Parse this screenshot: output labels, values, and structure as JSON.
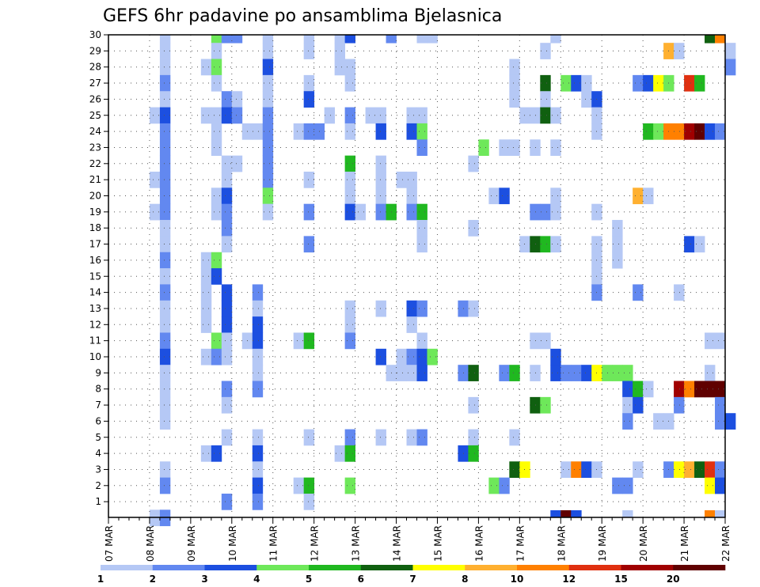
{
  "chart_data": {
    "type": "heatmap",
    "title": "GEFS 6hr padavine po ansamblima Bjelasnica",
    "xlabel": "",
    "ylabel": "",
    "x_tick_labels": [
      "07 MAR",
      "08 MAR",
      "09 MAR",
      "10 MAR",
      "11 MAR",
      "12 MAR",
      "13 MAR",
      "14 MAR",
      "15 MAR",
      "16 MAR",
      "17 MAR",
      "18 MAR",
      "19 MAR",
      "20 MAR",
      "21 MAR",
      "22 MAR"
    ],
    "x_range_steps": [
      0,
      60
    ],
    "members": [
      1,
      2,
      3,
      4,
      5,
      6,
      7,
      8,
      9,
      10,
      11,
      12,
      13,
      14,
      15,
      16,
      17,
      18,
      19,
      20,
      21,
      22,
      23,
      24,
      25,
      26,
      27,
      28,
      29,
      30
    ],
    "y_range": [
      0,
      30
    ],
    "grid": true,
    "legend_position": "bottom",
    "colorbar": {
      "levels": [
        "1",
        "2",
        "3",
        "4",
        "5",
        "6",
        "7",
        "8",
        "10",
        "12",
        "15",
        "20"
      ],
      "colors": [
        "#b5c8f5",
        "#6288f0",
        "#1c4fe0",
        "#6ee85a",
        "#20b820",
        "#106010",
        "#ffff00",
        "#ffb030",
        "#ff8000",
        "#e03010",
        "#a00000",
        "#600000"
      ]
    },
    "cells": [
      [
        30,
        5,
        0
      ],
      [
        30,
        10,
        3
      ],
      [
        30,
        11,
        1
      ],
      [
        30,
        12,
        1
      ],
      [
        30,
        15,
        0
      ],
      [
        30,
        19,
        0
      ],
      [
        30,
        22,
        0
      ],
      [
        30,
        23,
        2
      ],
      [
        30,
        27,
        1
      ],
      [
        30,
        30,
        0
      ],
      [
        30,
        31,
        0
      ],
      [
        30,
        43,
        0
      ],
      [
        30,
        58,
        5
      ],
      [
        30,
        59,
        8
      ],
      [
        29,
        5,
        0
      ],
      [
        29,
        10,
        0
      ],
      [
        29,
        15,
        0
      ],
      [
        29,
        19,
        0
      ],
      [
        29,
        22,
        0
      ],
      [
        29,
        42,
        0
      ],
      [
        29,
        54,
        7
      ],
      [
        29,
        55,
        0
      ],
      [
        29,
        60,
        0
      ],
      [
        28,
        5,
        0
      ],
      [
        28,
        9,
        0
      ],
      [
        28,
        10,
        3
      ],
      [
        28,
        15,
        2
      ],
      [
        28,
        22,
        0
      ],
      [
        28,
        23,
        0
      ],
      [
        28,
        39,
        0
      ],
      [
        28,
        60,
        1
      ],
      [
        27,
        5,
        1
      ],
      [
        27,
        10,
        0
      ],
      [
        27,
        15,
        0
      ],
      [
        27,
        19,
        0
      ],
      [
        27,
        23,
        0
      ],
      [
        27,
        39,
        0
      ],
      [
        27,
        42,
        5
      ],
      [
        27,
        44,
        3
      ],
      [
        27,
        45,
        2
      ],
      [
        27,
        46,
        0
      ],
      [
        27,
        51,
        1
      ],
      [
        27,
        52,
        2
      ],
      [
        27,
        53,
        6
      ],
      [
        27,
        54,
        3
      ],
      [
        27,
        56,
        9
      ],
      [
        27,
        57,
        4
      ],
      [
        26,
        5,
        0
      ],
      [
        26,
        11,
        1
      ],
      [
        26,
        12,
        0
      ],
      [
        26,
        15,
        0
      ],
      [
        26,
        19,
        2
      ],
      [
        26,
        39,
        0
      ],
      [
        26,
        42,
        0
      ],
      [
        26,
        46,
        0
      ],
      [
        26,
        47,
        2
      ],
      [
        25,
        4,
        0
      ],
      [
        25,
        5,
        2
      ],
      [
        25,
        9,
        0
      ],
      [
        25,
        10,
        0
      ],
      [
        25,
        11,
        2
      ],
      [
        25,
        12,
        1
      ],
      [
        25,
        15,
        1
      ],
      [
        25,
        21,
        0
      ],
      [
        25,
        23,
        1
      ],
      [
        25,
        25,
        0
      ],
      [
        25,
        26,
        0
      ],
      [
        25,
        29,
        0
      ],
      [
        25,
        30,
        0
      ],
      [
        25,
        40,
        0
      ],
      [
        25,
        41,
        0
      ],
      [
        25,
        42,
        5
      ],
      [
        25,
        43,
        0
      ],
      [
        25,
        47,
        0
      ],
      [
        24,
        5,
        1
      ],
      [
        24,
        10,
        0
      ],
      [
        24,
        13,
        0
      ],
      [
        24,
        14,
        0
      ],
      [
        24,
        15,
        1
      ],
      [
        24,
        18,
        0
      ],
      [
        24,
        19,
        1
      ],
      [
        24,
        20,
        1
      ],
      [
        24,
        23,
        0
      ],
      [
        24,
        26,
        2
      ],
      [
        24,
        29,
        2
      ],
      [
        24,
        30,
        3
      ],
      [
        24,
        47,
        0
      ],
      [
        24,
        52,
        4
      ],
      [
        24,
        53,
        3
      ],
      [
        24,
        54,
        8
      ],
      [
        24,
        55,
        8
      ],
      [
        24,
        56,
        10
      ],
      [
        24,
        57,
        11
      ],
      [
        24,
        58,
        2
      ],
      [
        24,
        59,
        1
      ],
      [
        23,
        5,
        1
      ],
      [
        23,
        10,
        0
      ],
      [
        23,
        15,
        1
      ],
      [
        23,
        30,
        1
      ],
      [
        23,
        36,
        3
      ],
      [
        23,
        38,
        0
      ],
      [
        23,
        39,
        0
      ],
      [
        23,
        41,
        0
      ],
      [
        23,
        43,
        0
      ],
      [
        22,
        5,
        1
      ],
      [
        22,
        11,
        0
      ],
      [
        22,
        12,
        0
      ],
      [
        22,
        15,
        1
      ],
      [
        22,
        23,
        4
      ],
      [
        22,
        26,
        0
      ],
      [
        22,
        35,
        0
      ],
      [
        21,
        4,
        0
      ],
      [
        21,
        5,
        1
      ],
      [
        21,
        11,
        0
      ],
      [
        21,
        15,
        1
      ],
      [
        21,
        19,
        0
      ],
      [
        21,
        23,
        0
      ],
      [
        21,
        26,
        0
      ],
      [
        21,
        28,
        0
      ],
      [
        21,
        29,
        0
      ],
      [
        20,
        5,
        1
      ],
      [
        20,
        10,
        0
      ],
      [
        20,
        11,
        2
      ],
      [
        20,
        15,
        3
      ],
      [
        20,
        23,
        0
      ],
      [
        20,
        26,
        0
      ],
      [
        20,
        29,
        0
      ],
      [
        20,
        37,
        0
      ],
      [
        20,
        38,
        2
      ],
      [
        20,
        43,
        0
      ],
      [
        20,
        51,
        7
      ],
      [
        20,
        52,
        0
      ],
      [
        19,
        4,
        0
      ],
      [
        19,
        5,
        1
      ],
      [
        19,
        10,
        0
      ],
      [
        19,
        11,
        1
      ],
      [
        19,
        15,
        0
      ],
      [
        19,
        19,
        1
      ],
      [
        19,
        23,
        2
      ],
      [
        19,
        24,
        0
      ],
      [
        19,
        26,
        1
      ],
      [
        19,
        27,
        4
      ],
      [
        19,
        29,
        1
      ],
      [
        19,
        30,
        4
      ],
      [
        19,
        41,
        1
      ],
      [
        19,
        42,
        1
      ],
      [
        19,
        43,
        0
      ],
      [
        19,
        47,
        0
      ],
      [
        18,
        5,
        0
      ],
      [
        18,
        11,
        1
      ],
      [
        18,
        30,
        0
      ],
      [
        18,
        35,
        0
      ],
      [
        18,
        49,
        0
      ],
      [
        17,
        5,
        0
      ],
      [
        17,
        11,
        0
      ],
      [
        17,
        19,
        1
      ],
      [
        17,
        30,
        0
      ],
      [
        17,
        40,
        0
      ],
      [
        17,
        41,
        5
      ],
      [
        17,
        42,
        4
      ],
      [
        17,
        43,
        0
      ],
      [
        17,
        47,
        0
      ],
      [
        17,
        49,
        0
      ],
      [
        17,
        56,
        2
      ],
      [
        17,
        57,
        0
      ],
      [
        16,
        5,
        1
      ],
      [
        16,
        9,
        0
      ],
      [
        16,
        10,
        3
      ],
      [
        16,
        47,
        0
      ],
      [
        16,
        49,
        0
      ],
      [
        15,
        5,
        0
      ],
      [
        15,
        9,
        0
      ],
      [
        15,
        10,
        2
      ],
      [
        15,
        47,
        0
      ],
      [
        14,
        5,
        1
      ],
      [
        14,
        9,
        0
      ],
      [
        14,
        11,
        2
      ],
      [
        14,
        14,
        1
      ],
      [
        14,
        47,
        1
      ],
      [
        14,
        51,
        1
      ],
      [
        14,
        55,
        0
      ],
      [
        13,
        5,
        0
      ],
      [
        13,
        9,
        0
      ],
      [
        13,
        11,
        2
      ],
      [
        13,
        14,
        0
      ],
      [
        13,
        23,
        0
      ],
      [
        13,
        26,
        0
      ],
      [
        13,
        29,
        2
      ],
      [
        13,
        30,
        1
      ],
      [
        13,
        34,
        1
      ],
      [
        13,
        35,
        0
      ],
      [
        12,
        5,
        0
      ],
      [
        12,
        9,
        0
      ],
      [
        12,
        11,
        2
      ],
      [
        12,
        14,
        2
      ],
      [
        12,
        23,
        0
      ],
      [
        12,
        29,
        0
      ],
      [
        11,
        5,
        1
      ],
      [
        11,
        10,
        3
      ],
      [
        11,
        11,
        0
      ],
      [
        11,
        13,
        0
      ],
      [
        11,
        14,
        2
      ],
      [
        11,
        18,
        0
      ],
      [
        11,
        19,
        4
      ],
      [
        11,
        23,
        1
      ],
      [
        11,
        30,
        0
      ],
      [
        11,
        41,
        0
      ],
      [
        11,
        42,
        0
      ],
      [
        11,
        58,
        0
      ],
      [
        11,
        59,
        0
      ],
      [
        10,
        5,
        2
      ],
      [
        10,
        9,
        0
      ],
      [
        10,
        10,
        1
      ],
      [
        10,
        11,
        0
      ],
      [
        10,
        14,
        0
      ],
      [
        10,
        26,
        2
      ],
      [
        10,
        28,
        0
      ],
      [
        10,
        29,
        1
      ],
      [
        10,
        30,
        2
      ],
      [
        10,
        31,
        3
      ],
      [
        10,
        43,
        2
      ],
      [
        9,
        5,
        0
      ],
      [
        9,
        14,
        0
      ],
      [
        9,
        27,
        0
      ],
      [
        9,
        28,
        0
      ],
      [
        9,
        29,
        0
      ],
      [
        9,
        30,
        2
      ],
      [
        9,
        34,
        1
      ],
      [
        9,
        35,
        5
      ],
      [
        9,
        38,
        1
      ],
      [
        9,
        39,
        4
      ],
      [
        9,
        41,
        0
      ],
      [
        9,
        43,
        2
      ],
      [
        9,
        44,
        1
      ],
      [
        9,
        45,
        1
      ],
      [
        9,
        46,
        2
      ],
      [
        9,
        47,
        6
      ],
      [
        9,
        48,
        3
      ],
      [
        9,
        49,
        3
      ],
      [
        9,
        50,
        3
      ],
      [
        9,
        58,
        0
      ],
      [
        8,
        5,
        0
      ],
      [
        8,
        11,
        1
      ],
      [
        8,
        14,
        1
      ],
      [
        8,
        50,
        2
      ],
      [
        8,
        51,
        4
      ],
      [
        8,
        52,
        0
      ],
      [
        8,
        55,
        10
      ],
      [
        8,
        56,
        8
      ],
      [
        8,
        57,
        11
      ],
      [
        8,
        58,
        11
      ],
      [
        8,
        59,
        11
      ],
      [
        7,
        5,
        0
      ],
      [
        7,
        11,
        0
      ],
      [
        7,
        35,
        0
      ],
      [
        7,
        41,
        5
      ],
      [
        7,
        42,
        3
      ],
      [
        7,
        50,
        0
      ],
      [
        7,
        51,
        2
      ],
      [
        7,
        55,
        1
      ],
      [
        7,
        59,
        1
      ],
      [
        6,
        5,
        0
      ],
      [
        6,
        50,
        1
      ],
      [
        6,
        53,
        0
      ],
      [
        6,
        54,
        0
      ],
      [
        6,
        59,
        1
      ],
      [
        6,
        60,
        2
      ],
      [
        5,
        11,
        0
      ],
      [
        5,
        14,
        0
      ],
      [
        5,
        19,
        0
      ],
      [
        5,
        23,
        1
      ],
      [
        5,
        26,
        0
      ],
      [
        5,
        29,
        0
      ],
      [
        5,
        30,
        1
      ],
      [
        5,
        35,
        0
      ],
      [
        5,
        39,
        0
      ],
      [
        4,
        9,
        0
      ],
      [
        4,
        10,
        2
      ],
      [
        4,
        14,
        2
      ],
      [
        4,
        22,
        0
      ],
      [
        4,
        23,
        4
      ],
      [
        4,
        34,
        2
      ],
      [
        4,
        35,
        4
      ],
      [
        3,
        5,
        0
      ],
      [
        3,
        14,
        0
      ],
      [
        3,
        39,
        5
      ],
      [
        3,
        40,
        6
      ],
      [
        3,
        44,
        0
      ],
      [
        3,
        45,
        8
      ],
      [
        3,
        46,
        2
      ],
      [
        3,
        47,
        0
      ],
      [
        3,
        51,
        0
      ],
      [
        3,
        54,
        1
      ],
      [
        3,
        55,
        6
      ],
      [
        3,
        56,
        7
      ],
      [
        3,
        57,
        5
      ],
      [
        3,
        58,
        9
      ],
      [
        3,
        59,
        1
      ],
      [
        2,
        5,
        1
      ],
      [
        2,
        14,
        2
      ],
      [
        2,
        18,
        0
      ],
      [
        2,
        19,
        4
      ],
      [
        2,
        23,
        3
      ],
      [
        2,
        37,
        3
      ],
      [
        2,
        38,
        1
      ],
      [
        2,
        49,
        1
      ],
      [
        2,
        50,
        1
      ],
      [
        2,
        58,
        6
      ],
      [
        2,
        59,
        2
      ],
      [
        1,
        11,
        1
      ],
      [
        1,
        14,
        1
      ],
      [
        1,
        19,
        0
      ],
      [
        0,
        4,
        0
      ],
      [
        0,
        5,
        1
      ],
      [
        -1,
        43,
        2
      ],
      [
        -1,
        44,
        11
      ],
      [
        -1,
        45,
        2
      ],
      [
        -1,
        50,
        0
      ],
      [
        -1,
        58,
        8
      ],
      [
        -1,
        59,
        0
      ]
    ]
  }
}
